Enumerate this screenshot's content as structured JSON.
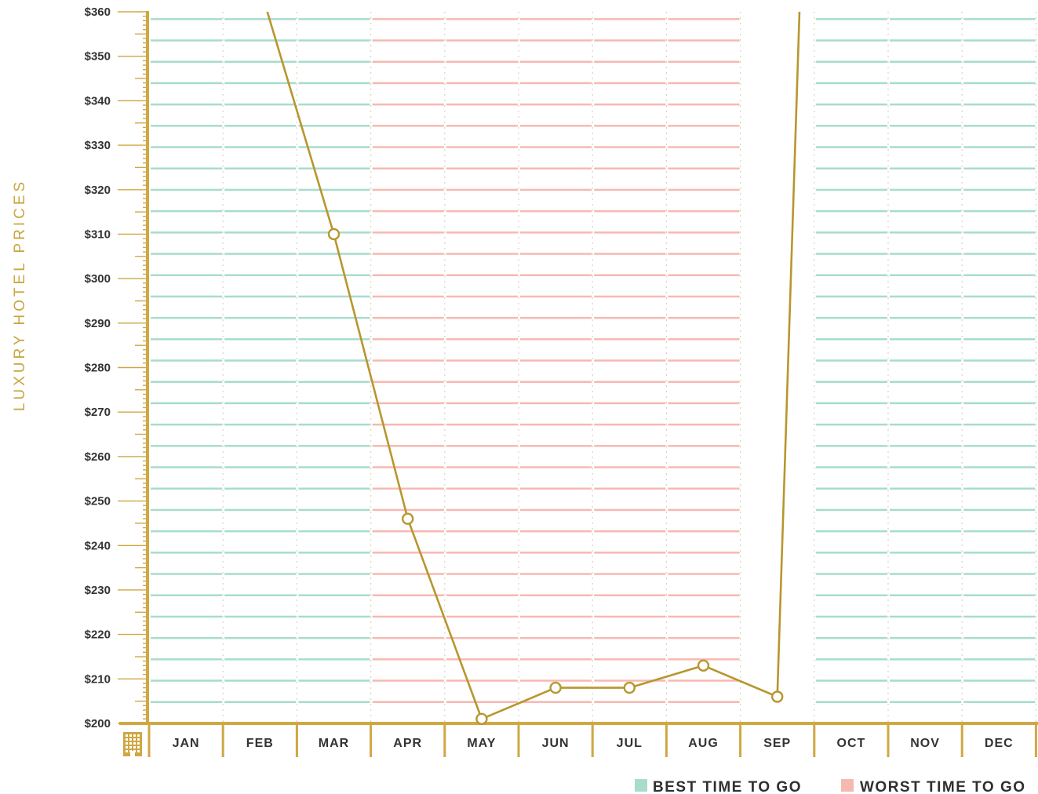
{
  "chart_data": {
    "type": "line",
    "ylabel": "LUXURY HOTEL PRICES",
    "categories": [
      "JAN",
      "FEB",
      "MAR",
      "APR",
      "MAY",
      "JUN",
      "JUL",
      "AUG",
      "SEP",
      "OCT",
      "NOV",
      "DEC"
    ],
    "y_ticks": [
      "$200",
      "$210",
      "$220",
      "$230",
      "$240",
      "$250",
      "$260",
      "$270",
      "$280",
      "$290",
      "$300",
      "$310",
      "$320",
      "$330",
      "$340",
      "$350",
      "$360"
    ],
    "ylim": [
      200,
      360
    ],
    "series": [
      {
        "values": [
          null,
          null,
          310,
          246,
          201,
          208,
          208,
          213,
          206,
          null,
          null,
          null
        ]
      }
    ],
    "offscale_line_x": [
      1.6,
      8.8
    ],
    "offscale_line_y": [
      360,
      360
    ],
    "best_months": [
      "JAN",
      "FEB",
      "MAR",
      "OCT",
      "NOV",
      "DEC"
    ],
    "worst_months": [
      "APR",
      "MAY",
      "JUN",
      "JUL",
      "AUG"
    ],
    "legend": {
      "best_label": "BEST TIME TO GO",
      "worst_label": "WORST TIME TO GO",
      "placement": "bottom-right"
    },
    "colors": {
      "line": "#b8962e",
      "axis": "#cfa844",
      "best": "#a8dccd",
      "worst": "#f6b9b0",
      "ytitle": "#c9a640",
      "text": "#333333"
    },
    "axis_icon": "building-icon",
    "grid": true
  }
}
